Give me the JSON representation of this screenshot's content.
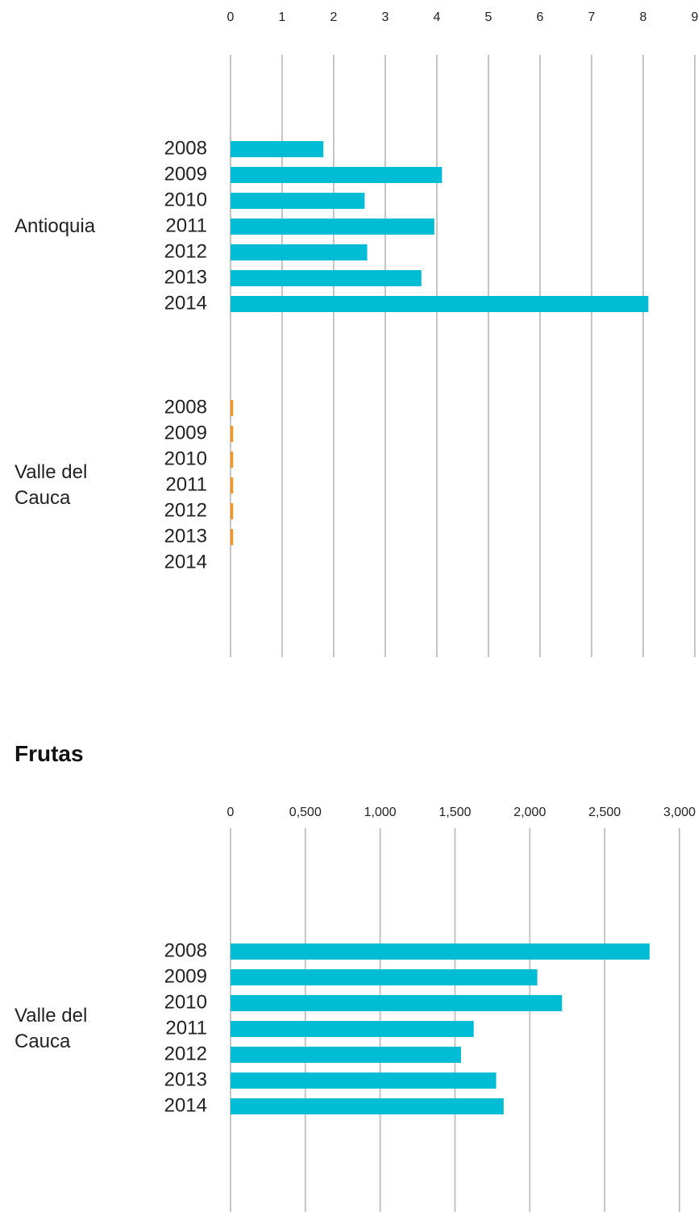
{
  "chart_data": [
    {
      "type": "bar",
      "groups": [
        {
          "name": "Antioquia",
          "color": "#00bcd4",
          "categories": [
            "2008",
            "2009",
            "2010",
            "2011",
            "2012",
            "2013",
            "2014"
          ],
          "values": [
            1.8,
            4.1,
            2.6,
            3.95,
            2.65,
            3.7,
            8.1
          ]
        },
        {
          "name": "Valle del Cauca",
          "color": "#f7941d",
          "categories": [
            "2008",
            "2009",
            "2010",
            "2011",
            "2012",
            "2013",
            "2014"
          ],
          "values": [
            0.05,
            0.05,
            0.05,
            0.05,
            0.05,
            0.05,
            null
          ]
        }
      ],
      "xlim": [
        0,
        9
      ],
      "xticks": [
        0,
        1,
        2,
        3,
        4,
        5,
        6,
        7,
        8,
        9
      ],
      "grid": true
    },
    {
      "type": "bar",
      "title": "Frutas",
      "groups": [
        {
          "name": "Valle del Cauca",
          "color": "#00bcd4",
          "categories": [
            "2008",
            "2009",
            "2010",
            "2011",
            "2012",
            "2013",
            "2014"
          ],
          "values": [
            2800,
            2050,
            2215,
            1625,
            1540,
            1775,
            1825
          ]
        }
      ],
      "xlim": [
        0,
        3000
      ],
      "xticks": [
        0,
        {
          "value": 500,
          "label": "0,500"
        },
        {
          "value": 1000,
          "label": "1,000"
        },
        {
          "value": 1500,
          "label": "1,500"
        },
        {
          "value": 2000,
          "label": "2,000"
        },
        {
          "value": 2500,
          "label": "2,500"
        },
        {
          "value": 3000,
          "label": "3,000"
        }
      ],
      "grid": true
    }
  ]
}
